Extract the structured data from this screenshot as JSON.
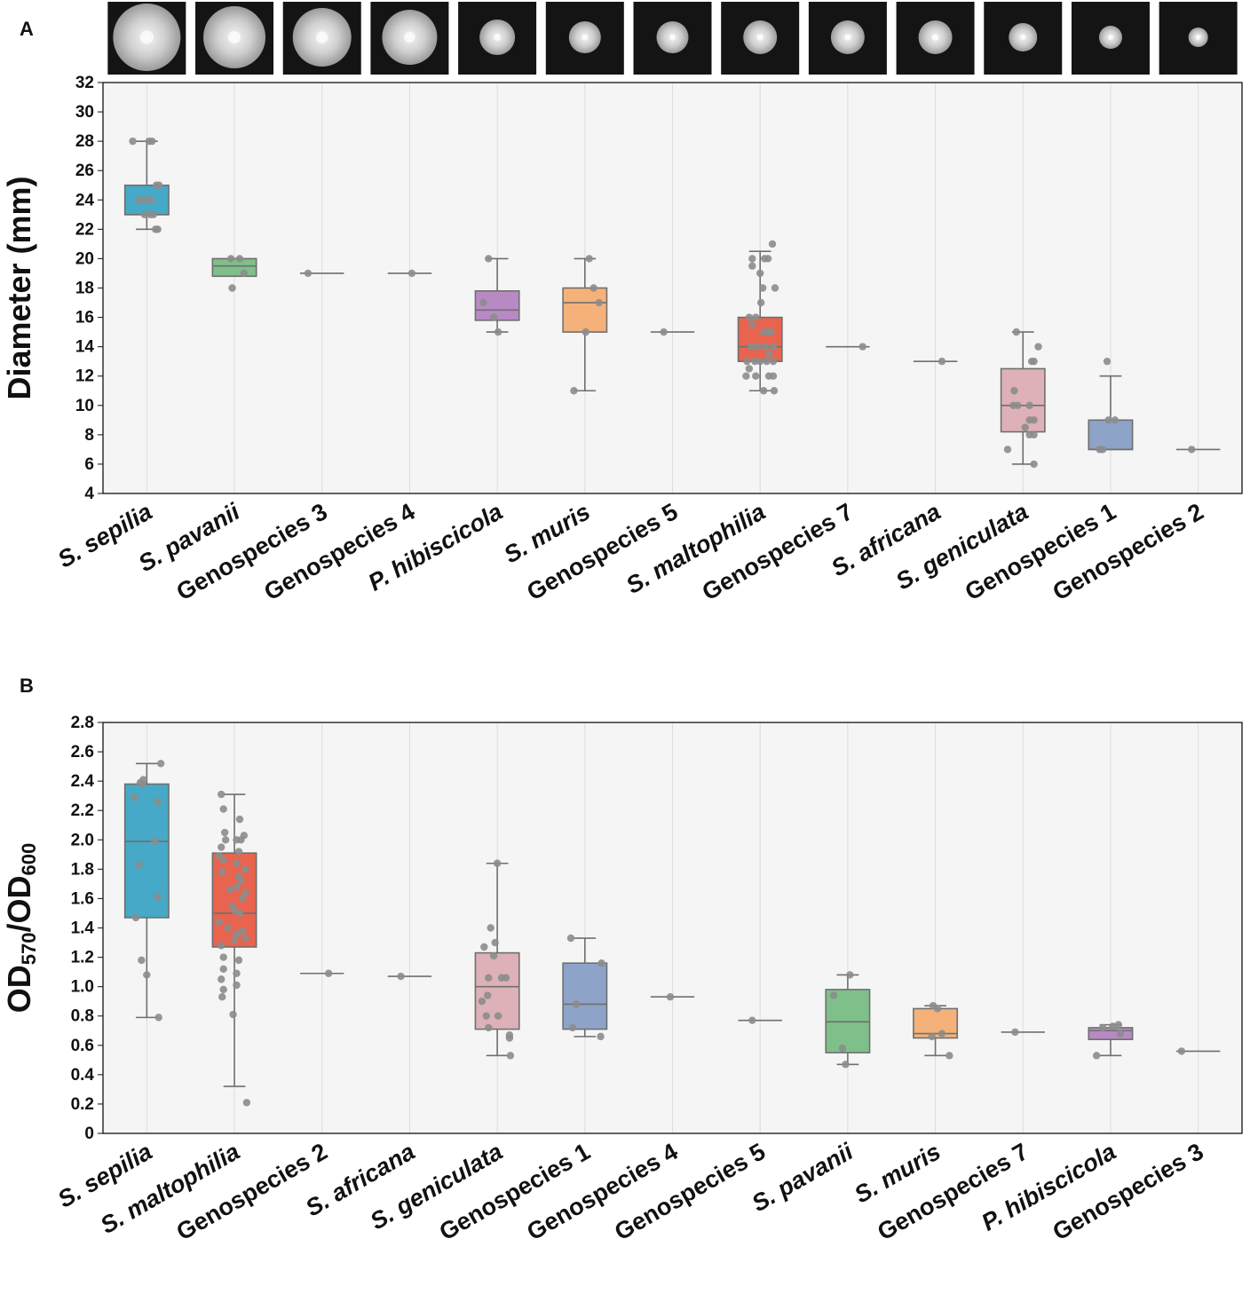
{
  "chart_data": [
    {
      "panel": "A",
      "type": "box",
      "ylabel": "Diameter (mm)",
      "ylim": [
        4,
        32
      ],
      "yticks": [
        4,
        6,
        8,
        10,
        12,
        14,
        16,
        18,
        20,
        22,
        24,
        26,
        28,
        30,
        32
      ],
      "grid": "vertical",
      "colony_images": 13,
      "categories": [
        {
          "label": "S. sepilia",
          "italic": "sepilia",
          "color": "#46a9c7",
          "q1": 23,
          "median": 23,
          "q3": 25,
          "whislo": 22,
          "whishi": 28,
          "points": [
            [
              -0.32,
              28
            ],
            [
              0.05,
              28
            ],
            [
              0.12,
              28
            ],
            [
              0.28,
              25
            ],
            [
              0.22,
              25
            ],
            [
              -0.05,
              24
            ],
            [
              0.1,
              24
            ],
            [
              -0.05,
              23
            ],
            [
              0.08,
              23
            ],
            [
              0.15,
              23
            ],
            [
              0.2,
              22
            ],
            [
              0.25,
              22
            ],
            [
              -0.18,
              24
            ]
          ]
        },
        {
          "label": "S. pavanii",
          "italic": "pavanii",
          "color": "#7fbf8a",
          "q1": 18.8,
          "median": 19.5,
          "q3": 20,
          "whislo": 18.8,
          "whishi": 20,
          "points": [
            [
              -0.08,
              20
            ],
            [
              0.12,
              20
            ],
            [
              0.22,
              19
            ],
            [
              -0.05,
              18
            ]
          ]
        },
        {
          "label": "Genospecies 3",
          "italic": "",
          "color": "#7fbf8a",
          "q1": 19,
          "median": 19,
          "q3": 19,
          "whislo": 19,
          "whishi": 19,
          "points": [
            [
              -0.32,
              19
            ]
          ]
        },
        {
          "label": "Genospecies 4",
          "italic": "",
          "color": "#7fbf8a",
          "q1": 19,
          "median": 19,
          "q3": 19,
          "whislo": 19,
          "whishi": 19,
          "points": [
            [
              0.05,
              19
            ]
          ]
        },
        {
          "label": "P. hibiscicola",
          "italic": "P. hibiscicola",
          "color": "#b88ac4",
          "q1": 15.8,
          "median": 16.5,
          "q3": 17.8,
          "whislo": 15,
          "whishi": 20,
          "points": [
            [
              -0.2,
              20
            ],
            [
              -0.32,
              17
            ],
            [
              -0.08,
              16
            ],
            [
              0.02,
              15
            ]
          ]
        },
        {
          "label": "S. muris",
          "italic": "muris",
          "color": "#f4b27a",
          "q1": 15,
          "median": 17,
          "q3": 18,
          "whislo": 11,
          "whishi": 20,
          "points": [
            [
              0.1,
              20
            ],
            [
              0.2,
              18
            ],
            [
              0.32,
              17
            ],
            [
              0.02,
              15
            ],
            [
              -0.25,
              11
            ]
          ]
        },
        {
          "label": "Genospecies 5",
          "italic": "",
          "color": "#7fbf8a",
          "q1": 15,
          "median": 15,
          "q3": 15,
          "whislo": 15,
          "whishi": 15,
          "points": [
            [
              -0.2,
              15
            ]
          ]
        },
        {
          "label": "S. maltophilia",
          "italic": "maltophilia",
          "color": "#e8644e",
          "q1": 13,
          "median": 14,
          "q3": 16,
          "whislo": 11,
          "whishi": 20.5,
          "points": [
            [
              0.28,
              21
            ],
            [
              -0.18,
              20
            ],
            [
              0.1,
              20
            ],
            [
              0.18,
              20
            ],
            [
              -0.18,
              19.5
            ],
            [
              0.0,
              19
            ],
            [
              0.06,
              18
            ],
            [
              0.34,
              18
            ],
            [
              0.02,
              17
            ],
            [
              -0.25,
              16
            ],
            [
              -0.1,
              16
            ],
            [
              -0.18,
              15.5
            ],
            [
              0.08,
              15
            ],
            [
              0.18,
              15
            ],
            [
              0.25,
              15
            ],
            [
              -0.2,
              14
            ],
            [
              -0.05,
              14
            ],
            [
              0.12,
              14
            ],
            [
              0.3,
              14
            ],
            [
              -0.3,
              13
            ],
            [
              -0.12,
              13
            ],
            [
              0.0,
              13
            ],
            [
              0.15,
              13
            ],
            [
              0.3,
              13
            ],
            [
              -0.32,
              12
            ],
            [
              -0.1,
              12
            ],
            [
              0.2,
              12
            ],
            [
              0.3,
              12
            ],
            [
              0.08,
              11
            ],
            [
              0.32,
              11
            ],
            [
              -0.25,
              12.5
            ],
            [
              0.2,
              13.5
            ]
          ]
        },
        {
          "label": "Genospecies 7",
          "italic": "",
          "color": "#7fbf8a",
          "q1": 14,
          "median": 14,
          "q3": 14,
          "whislo": 14,
          "whishi": 14,
          "points": [
            [
              0.34,
              14
            ]
          ]
        },
        {
          "label": "S. africana",
          "italic": "africana",
          "color": "#7fbf8a",
          "q1": 13,
          "median": 13,
          "q3": 13,
          "whislo": 13,
          "whishi": 13,
          "points": [
            [
              0.15,
              13
            ]
          ]
        },
        {
          "label": "S. geniculata",
          "italic": "geniculata",
          "color": "#ddb1b7",
          "q1": 8.2,
          "median": 10,
          "q3": 12.5,
          "whislo": 6,
          "whishi": 15,
          "points": [
            [
              -0.15,
              15
            ],
            [
              0.35,
              14
            ],
            [
              0.2,
              13
            ],
            [
              0.25,
              13
            ],
            [
              -0.2,
              11
            ],
            [
              0.15,
              10
            ],
            [
              -0.22,
              10
            ],
            [
              -0.12,
              10
            ],
            [
              0.15,
              9
            ],
            [
              0.25,
              9
            ],
            [
              0.15,
              8
            ],
            [
              0.25,
              8
            ],
            [
              -0.35,
              7
            ],
            [
              0.25,
              6
            ],
            [
              0.05,
              8.5
            ]
          ]
        },
        {
          "label": "Genospecies 1",
          "italic": "",
          "color": "#8ea3c8",
          "q1": 7,
          "median": 7,
          "q3": 9,
          "whislo": 7,
          "whishi": 12,
          "points": [
            [
              -0.08,
              13
            ],
            [
              -0.05,
              9
            ],
            [
              0.1,
              9
            ],
            [
              -0.25,
              7
            ],
            [
              -0.18,
              7
            ]
          ]
        },
        {
          "label": "Genospecies 2",
          "italic": "",
          "color": "#7fbf8a",
          "q1": 7,
          "median": 7,
          "q3": 7,
          "whislo": 7,
          "whishi": 7,
          "points": [
            [
              -0.15,
              7
            ]
          ]
        }
      ]
    },
    {
      "panel": "B",
      "type": "box",
      "ylabel": "OD570/OD600",
      "ylabel_parts": {
        "a": "OD",
        "a_sub": "570",
        "sep": "/OD",
        "b_sub": "600"
      },
      "ylim": [
        0,
        2.8
      ],
      "yticks": [
        "0",
        "0.2",
        "0.4",
        "0.6",
        "0.8",
        "1.0",
        "1.2",
        "1.4",
        "1.6",
        "1.8",
        "2.0",
        "2.2",
        "2.4",
        "2.6",
        "2.8"
      ],
      "grid": "vertical",
      "categories": [
        {
          "label": "S. sepilia",
          "italic": "sepilia",
          "color": "#46a9c7",
          "q1": 1.47,
          "median": 1.99,
          "q3": 2.38,
          "whislo": 0.79,
          "whishi": 2.52,
          "points": [
            [
              0.32,
              2.52
            ],
            [
              -0.08,
              2.41
            ],
            [
              -0.15,
              2.39
            ],
            [
              -0.1,
              2.38
            ],
            [
              0.25,
              2.26
            ],
            [
              -0.28,
              2.29
            ],
            [
              0.18,
              1.99
            ],
            [
              -0.18,
              1.83
            ],
            [
              0.25,
              1.61
            ],
            [
              -0.25,
              1.47
            ],
            [
              -0.12,
              1.18
            ],
            [
              0.0,
              1.08
            ],
            [
              0.27,
              0.79
            ]
          ]
        },
        {
          "label": "S. maltophilia",
          "italic": "maltophilia",
          "color": "#e8644e",
          "q1": 1.27,
          "median": 1.5,
          "q3": 1.91,
          "whislo": 0.32,
          "whishi": 2.31,
          "points": [
            [
              -0.3,
              2.31
            ],
            [
              -0.25,
              2.21
            ],
            [
              0.12,
              2.14
            ],
            [
              0.22,
              2.03
            ],
            [
              -0.22,
              2.05
            ],
            [
              -0.2,
              2.0
            ],
            [
              0.05,
              2.0
            ],
            [
              0.15,
              2.0
            ],
            [
              -0.3,
              1.95
            ],
            [
              0.1,
              1.92
            ],
            [
              -0.35,
              1.89
            ],
            [
              -0.25,
              1.86
            ],
            [
              0.05,
              1.84
            ],
            [
              0.25,
              1.8
            ],
            [
              0.1,
              1.75
            ],
            [
              -0.28,
              1.78
            ],
            [
              0.15,
              1.72
            ],
            [
              0.05,
              1.68
            ],
            [
              -0.1,
              1.66
            ],
            [
              0.25,
              1.64
            ],
            [
              0.18,
              1.6
            ],
            [
              -0.05,
              1.55
            ],
            [
              0.0,
              1.52
            ],
            [
              0.12,
              1.5
            ],
            [
              -0.35,
              1.44
            ],
            [
              -0.15,
              1.4
            ],
            [
              0.05,
              1.36
            ],
            [
              0.18,
              1.38
            ],
            [
              0.25,
              1.33
            ],
            [
              0.0,
              1.32
            ],
            [
              -0.3,
              1.28
            ],
            [
              -0.25,
              1.2
            ],
            [
              0.1,
              1.18
            ],
            [
              -0.25,
              1.12
            ],
            [
              0.05,
              1.09
            ],
            [
              -0.3,
              1.05
            ],
            [
              0.05,
              1.01
            ],
            [
              -0.25,
              0.98
            ],
            [
              -0.28,
              0.93
            ],
            [
              -0.03,
              0.81
            ],
            [
              0.28,
              0.21
            ]
          ]
        },
        {
          "label": "Genospecies 2",
          "italic": "",
          "color": "#7fbf8a",
          "q1": 1.09,
          "median": 1.09,
          "q3": 1.09,
          "whislo": 1.09,
          "whishi": 1.09,
          "points": [
            [
              0.15,
              1.09
            ]
          ]
        },
        {
          "label": "S. africana",
          "italic": "africana",
          "color": "#7fbf8a",
          "q1": 1.07,
          "median": 1.07,
          "q3": 1.07,
          "whislo": 1.07,
          "whishi": 1.07,
          "points": [
            [
              -0.2,
              1.07
            ]
          ]
        },
        {
          "label": "S. geniculata",
          "italic": "geniculata",
          "color": "#ddb1b7",
          "q1": 0.71,
          "median": 1.0,
          "q3": 1.23,
          "whislo": 0.53,
          "whishi": 1.84,
          "points": [
            [
              0.0,
              1.84
            ],
            [
              -0.15,
              1.4
            ],
            [
              -0.05,
              1.3
            ],
            [
              -0.3,
              1.27
            ],
            [
              -0.08,
              1.21
            ],
            [
              -0.2,
              1.06
            ],
            [
              0.1,
              1.06
            ],
            [
              0.2,
              1.06
            ],
            [
              -0.35,
              0.9
            ],
            [
              -0.22,
              0.94
            ],
            [
              -0.25,
              0.8
            ],
            [
              0.02,
              0.8
            ],
            [
              -0.2,
              0.72
            ],
            [
              0.28,
              0.67
            ],
            [
              0.28,
              0.65
            ],
            [
              0.3,
              0.53
            ]
          ]
        },
        {
          "label": "Genospecies 1",
          "italic": "",
          "color": "#8ea3c8",
          "q1": 0.71,
          "median": 0.88,
          "q3": 1.16,
          "whislo": 0.66,
          "whishi": 1.33,
          "points": [
            [
              -0.32,
              1.33
            ],
            [
              0.38,
              1.16
            ],
            [
              -0.2,
              0.88
            ],
            [
              -0.28,
              0.72
            ],
            [
              0.36,
              0.66
            ]
          ]
        },
        {
          "label": "Genospecies 4",
          "italic": "",
          "color": "#7fbf8a",
          "q1": 0.93,
          "median": 0.93,
          "q3": 0.93,
          "whislo": 0.93,
          "whishi": 0.93,
          "points": [
            [
              -0.05,
              0.93
            ]
          ]
        },
        {
          "label": "Genospecies 5",
          "italic": "",
          "color": "#7fbf8a",
          "q1": 0.77,
          "median": 0.77,
          "q3": 0.77,
          "whislo": 0.77,
          "whishi": 0.77,
          "points": [
            [
              -0.18,
              0.77
            ]
          ]
        },
        {
          "label": "S. pavanii",
          "italic": "pavanii",
          "color": "#7fbf8a",
          "q1": 0.55,
          "median": 0.76,
          "q3": 0.98,
          "whislo": 0.47,
          "whishi": 1.08,
          "points": [
            [
              0.05,
              1.08
            ],
            [
              -0.32,
              0.94
            ],
            [
              -0.12,
              0.58
            ],
            [
              -0.05,
              0.47
            ]
          ]
        },
        {
          "label": "S. muris",
          "italic": "muris",
          "color": "#f4b27a",
          "q1": 0.65,
          "median": 0.68,
          "q3": 0.85,
          "whislo": 0.53,
          "whishi": 0.87,
          "points": [
            [
              -0.05,
              0.87
            ],
            [
              0.05,
              0.85
            ],
            [
              0.15,
              0.68
            ],
            [
              -0.08,
              0.66
            ],
            [
              0.32,
              0.53
            ]
          ]
        },
        {
          "label": "Genospecies 7",
          "italic": "",
          "color": "#7fbf8a",
          "q1": 0.69,
          "median": 0.69,
          "q3": 0.69,
          "whislo": 0.69,
          "whishi": 0.69,
          "points": [
            [
              -0.18,
              0.69
            ]
          ]
        },
        {
          "label": "P. hibiscicola",
          "italic": "P. hibiscicola",
          "color": "#b88ac4",
          "q1": 0.64,
          "median": 0.7,
          "q3": 0.72,
          "whislo": 0.53,
          "whishi": 0.74,
          "points": [
            [
              -0.32,
              0.53
            ],
            [
              -0.18,
              0.72
            ],
            [
              0.05,
              0.73
            ],
            [
              0.18,
              0.74
            ],
            [
              0.22,
              0.68
            ]
          ]
        },
        {
          "label": "Genospecies 3",
          "italic": "",
          "color": "#7fbf8a",
          "q1": 0.56,
          "median": 0.56,
          "q3": 0.56,
          "whislo": 0.56,
          "whishi": 0.56,
          "points": [
            [
              -0.38,
              0.56
            ]
          ]
        }
      ]
    }
  ]
}
